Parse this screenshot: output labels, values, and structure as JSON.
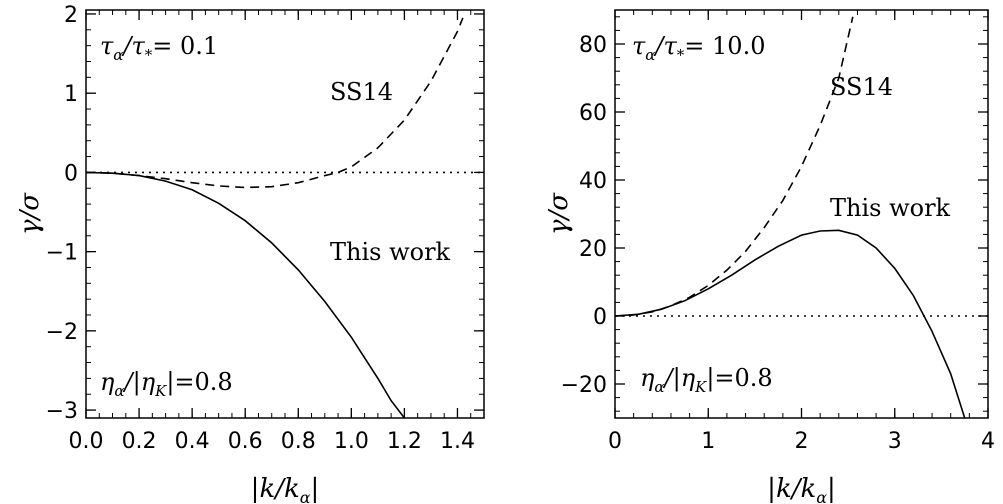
{
  "chart_data": [
    {
      "type": "line",
      "panel": "left",
      "xlabel": "|k/k_α|",
      "ylabel": "γ/σ",
      "xlim": [
        0.0,
        1.5
      ],
      "ylim": [
        -3.1,
        2.05
      ],
      "xticks": [
        "0.0",
        "0.2",
        "0.4",
        "0.6",
        "0.8",
        "1.0",
        "1.2",
        "1.4"
      ],
      "yticks": [
        "2",
        "1",
        "0",
        "−1",
        "−2",
        "−3"
      ],
      "ytick_values": [
        2,
        1,
        0,
        -1,
        -2,
        -3
      ],
      "xtick_values": [
        0.0,
        0.2,
        0.4,
        0.6,
        0.8,
        1.0,
        1.2,
        1.4
      ],
      "annotations": {
        "tau_text": "τα/τ* = 0.1",
        "tau_label": "τ",
        "tau_value": "= 0.1",
        "eta_label": "η",
        "eta_value": "|=0.8",
        "dashed_label": "SS14",
        "solid_label": "This work"
      },
      "series": [
        {
          "name": "SS14",
          "style": "dashed",
          "x": [
            0.0,
            0.1,
            0.2,
            0.3,
            0.4,
            0.5,
            0.6,
            0.7,
            0.8,
            0.9,
            0.95,
            1.0,
            1.1,
            1.2,
            1.3,
            1.4,
            1.42
          ],
          "y": [
            0.0,
            -0.01,
            -0.04,
            -0.08,
            -0.13,
            -0.17,
            -0.19,
            -0.18,
            -0.13,
            -0.04,
            0.0,
            0.07,
            0.31,
            0.66,
            1.15,
            1.78,
            1.95
          ]
        },
        {
          "name": "This work",
          "style": "solid",
          "x": [
            0.0,
            0.1,
            0.2,
            0.3,
            0.4,
            0.5,
            0.6,
            0.7,
            0.8,
            0.9,
            1.0,
            1.1,
            1.15,
            1.2
          ],
          "y": [
            0.0,
            -0.01,
            -0.04,
            -0.11,
            -0.22,
            -0.39,
            -0.61,
            -0.89,
            -1.23,
            -1.63,
            -2.08,
            -2.6,
            -2.88,
            -3.1
          ]
        },
        {
          "name": "zero",
          "style": "dotted",
          "x": [
            0.0,
            1.5
          ],
          "y": [
            0.0,
            0.0
          ]
        }
      ]
    },
    {
      "type": "line",
      "panel": "right",
      "xlabel": "|k/k_α|",
      "ylabel": "γ/σ",
      "xlim": [
        0,
        4
      ],
      "ylim": [
        -30,
        90
      ],
      "xticks": [
        "0",
        "1",
        "2",
        "3",
        "4"
      ],
      "yticks": [
        "80",
        "60",
        "40",
        "20",
        "0",
        "−20"
      ],
      "ytick_values": [
        80,
        60,
        40,
        20,
        0,
        -20
      ],
      "xtick_values": [
        0,
        1,
        2,
        3,
        4
      ],
      "annotations": {
        "tau_text": "τα/τ* = 10.0",
        "tau_label": "τ",
        "tau_value": "= 10.0",
        "eta_label": "η",
        "eta_value": "|=0.8",
        "dashed_label": "SS14",
        "solid_label": "This work"
      },
      "series": [
        {
          "name": "SS14",
          "style": "dashed",
          "x": [
            0.0,
            0.2,
            0.4,
            0.6,
            0.8,
            1.0,
            1.2,
            1.4,
            1.6,
            1.8,
            2.0,
            2.2,
            2.4,
            2.55
          ],
          "y": [
            0.0,
            0.3,
            1.2,
            3.0,
            5.5,
            9.0,
            13.5,
            19.0,
            26.0,
            34.0,
            44.0,
            56.0,
            70.0,
            88.0
          ]
        },
        {
          "name": "This work",
          "style": "solid",
          "x": [
            0.0,
            0.25,
            0.5,
            0.75,
            1.0,
            1.25,
            1.5,
            1.75,
            2.0,
            2.2,
            2.4,
            2.6,
            2.8,
            3.0,
            3.2,
            3.4,
            3.6,
            3.75
          ],
          "y": [
            0.0,
            0.5,
            2.0,
            4.5,
            8.0,
            12.0,
            16.5,
            20.5,
            23.8,
            25.0,
            25.2,
            23.8,
            20.0,
            14.0,
            6.0,
            -4.5,
            -17.0,
            -30.0
          ]
        },
        {
          "name": "zero",
          "style": "dotted",
          "x": [
            0,
            4
          ],
          "y": [
            0,
            0
          ]
        }
      ]
    }
  ]
}
